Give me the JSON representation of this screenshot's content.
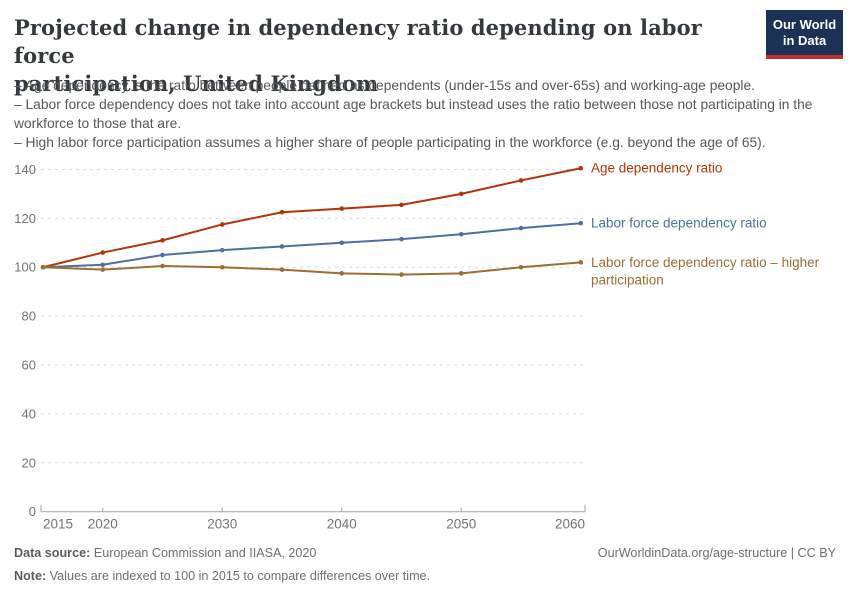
{
  "header": {
    "title_lines": [
      "Projected change in dependency ratio depending on labor force",
      "participation, United Kingdom"
    ],
    "logo_lines": [
      "Our World",
      "in Data"
    ],
    "logo_colors": {
      "navy": "#1b3155",
      "red": "#c62e2b"
    }
  },
  "subtitle": {
    "lines": [
      "– Age dependency is the ratio between people defined as dependents (under-15s and over-65s) and working-age people.",
      "– Labor force dependency does not take into account age brackets but instead uses the ratio between those not participating in the workforce to those that are.",
      "– High labor force participation assumes a higher share of people participating in the workforce (e.g. beyond the age of 65)."
    ]
  },
  "chart_data": {
    "type": "line",
    "title": "Projected change in dependency ratio depending on labor force participation, United Kingdom",
    "xlabel": "",
    "ylabel": "",
    "x": [
      2015,
      2020,
      2025,
      2030,
      2035,
      2040,
      2045,
      2050,
      2055,
      2060
    ],
    "xticks": [
      2015,
      2020,
      2030,
      2040,
      2050,
      2060
    ],
    "yticks": [
      0,
      20,
      40,
      60,
      80,
      100,
      120,
      140
    ],
    "ylim": [
      0,
      140
    ],
    "grid": true,
    "legend_position": "right-of-line-ends",
    "series": [
      {
        "name": "Age dependency ratio",
        "color": "#B13507",
        "values": [
          100,
          106,
          111,
          117.5,
          122.5,
          124,
          125.5,
          130,
          135.5,
          140.5
        ],
        "label_lines": [
          "Age dependency ratio"
        ]
      },
      {
        "name": "Labor force dependency ratio",
        "color": "#4C6FA4",
        "values": [
          100,
          101,
          105,
          107,
          108.5,
          110,
          111.5,
          113.5,
          116,
          118
        ],
        "label_lines": [
          "Labor force dependency ratio"
        ]
      },
      {
        "name": "Labor force dependency ratio – higher participation",
        "color": "#9D6D34",
        "values": [
          100,
          99,
          100.5,
          100,
          99,
          97.5,
          97,
          97.5,
          100,
          102
        ],
        "label_lines": [
          "Labor force dependency ratio – higher",
          "participation"
        ]
      }
    ]
  },
  "footer": {
    "data_source_label": "Data source:",
    "data_source_text": " European Commission and IIASA, 2020",
    "note_label": "Note:",
    "note_text": " Values are indexed to 100 in 2015 to compare differences over time.",
    "link": "OurWorldinData.org/age-structure | CC BY"
  }
}
